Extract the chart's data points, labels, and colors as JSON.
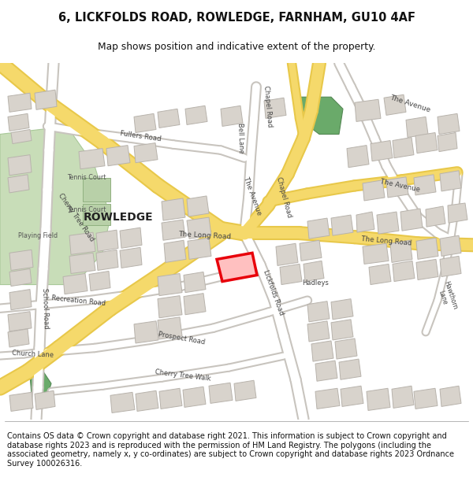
{
  "title_line1": "6, LICKFOLDS ROAD, ROWLEDGE, FARNHAM, GU10 4AF",
  "title_line2": "Map shows position and indicative extent of the property.",
  "footer_text": "Contains OS data © Crown copyright and database right 2021. This information is subject to Crown copyright and database rights 2023 and is reproduced with the permission of HM Land Registry. The polygons (including the associated geometry, namely x, y co-ordinates) are subject to Crown copyright and database rights 2023 Ordnance Survey 100026316.",
  "map_bg": "#f5f2ed",
  "road_white": "#ffffff",
  "road_yellow": "#f5d96b",
  "road_yellow_outline": "#e8c84a",
  "road_white_outline": "#c8c4be",
  "building_fill": "#d8d3cc",
  "building_outline": "#b8b3ac",
  "green_light": "#c8ddb8",
  "green_dark": "#6aaa6a",
  "highlight_red": "#e8000a",
  "highlight_fill": "#ffd0d0",
  "text_dark": "#333333",
  "text_road": "#555555"
}
